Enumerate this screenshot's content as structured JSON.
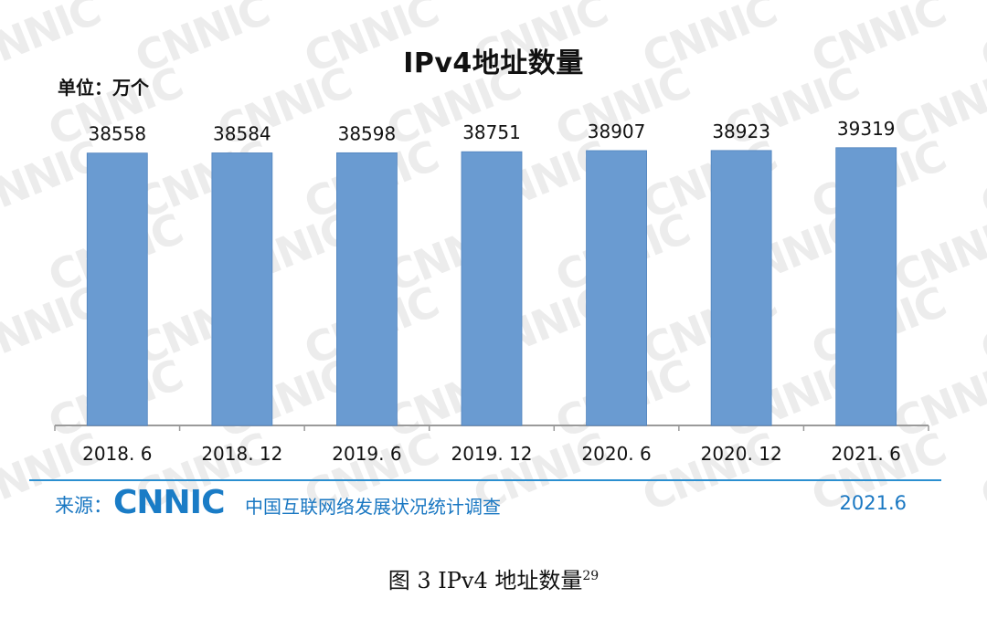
{
  "figure": {
    "source_prefix": "来源：",
    "source_logo": "CNNIC",
    "source_org": "中国互联网络发展状况统计调查",
    "source_date": "2021.6",
    "caption_text": "图  3    IPv4 地址数量",
    "caption_sup": "29",
    "watermark_text": "CNNIC"
  },
  "chart_data": {
    "type": "bar",
    "title": "IPv4地址数量",
    "unit_label": "单位：万个",
    "categories": [
      "2018. 6",
      "2018. 12",
      "2019. 6",
      "2019. 12",
      "2020. 6",
      "2020. 12",
      "2021. 6"
    ],
    "values": [
      38558,
      38584,
      38598,
      38751,
      38907,
      38923,
      39319
    ],
    "bar_color": "#6a9bd1",
    "ylim": [
      0,
      39550
    ],
    "grid": false,
    "legend": "none"
  }
}
